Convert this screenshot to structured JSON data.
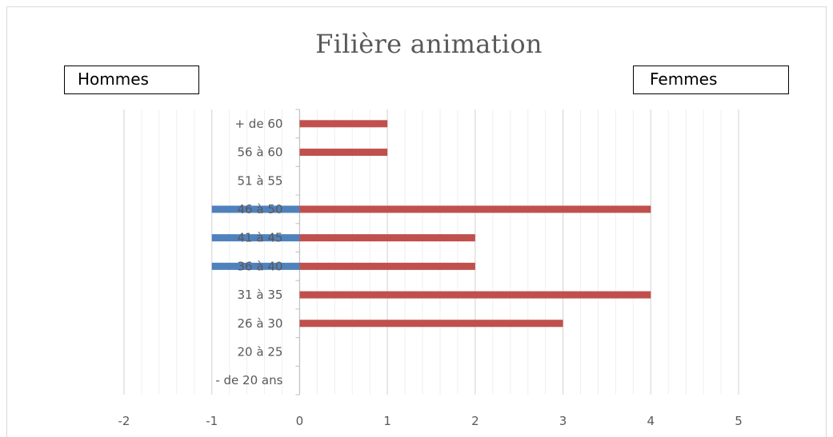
{
  "chart_data": {
    "type": "bar",
    "orientation": "horizontal",
    "title": "Filière animation",
    "categories": [
      "- de 20 ans",
      "20 à 25",
      "26 à 30",
      "31 à 35",
      "36 à 40",
      "41 à 45",
      "46 à 50",
      "51 à 55",
      "56 à 60",
      "+ de 60"
    ],
    "series": [
      {
        "values": [
          0,
          0,
          0,
          0,
          -1,
          -1,
          -1,
          0,
          0,
          0
        ],
        "color": "#4f81bd"
      },
      {
        "values": [
          0,
          0,
          3,
          4,
          2,
          2,
          4,
          0,
          1,
          1
        ],
        "color": "#c0504d"
      }
    ],
    "xlim": [
      -2,
      5
    ],
    "xticks": [
      -2,
      -1,
      0,
      1,
      2,
      3,
      4,
      5
    ],
    "minor_step": 0.2,
    "grid": true,
    "annotations": {
      "left": "Hommes",
      "right": "Femmes"
    }
  }
}
